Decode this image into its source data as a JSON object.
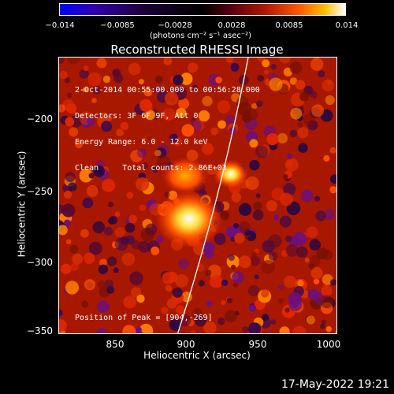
{
  "colorbar": {
    "ticks": [
      "−0.014",
      "−0.0085",
      "−0.0028",
      "0.0028",
      "0.0085",
      "0.014"
    ],
    "unit_label": "(photons cm⁻² s⁻¹ asec⁻²)"
  },
  "title": "Reconstructed RHESSI Image",
  "info": {
    "line1": "2-Oct-2014 00:55:00.000 to 00:56:28.000",
    "line2": "Detectors: 3F 6F 9F, Att 0",
    "line3": "Energy Range: 6.0 - 12.0 keV",
    "line4": "Clean     Total counts: 2.86E+03",
    "peak": "Position of Peak = [904,-269]"
  },
  "axes": {
    "xlabel": "Heliocentric X (arcsec)",
    "ylabel": "Heliocentric Y (arcsec)",
    "xticks": [
      "850",
      "900",
      "950",
      "1000"
    ],
    "yticks": [
      "−200",
      "−250",
      "−300",
      "−350"
    ]
  },
  "footer_date": "17-May-2022 19:21"
}
